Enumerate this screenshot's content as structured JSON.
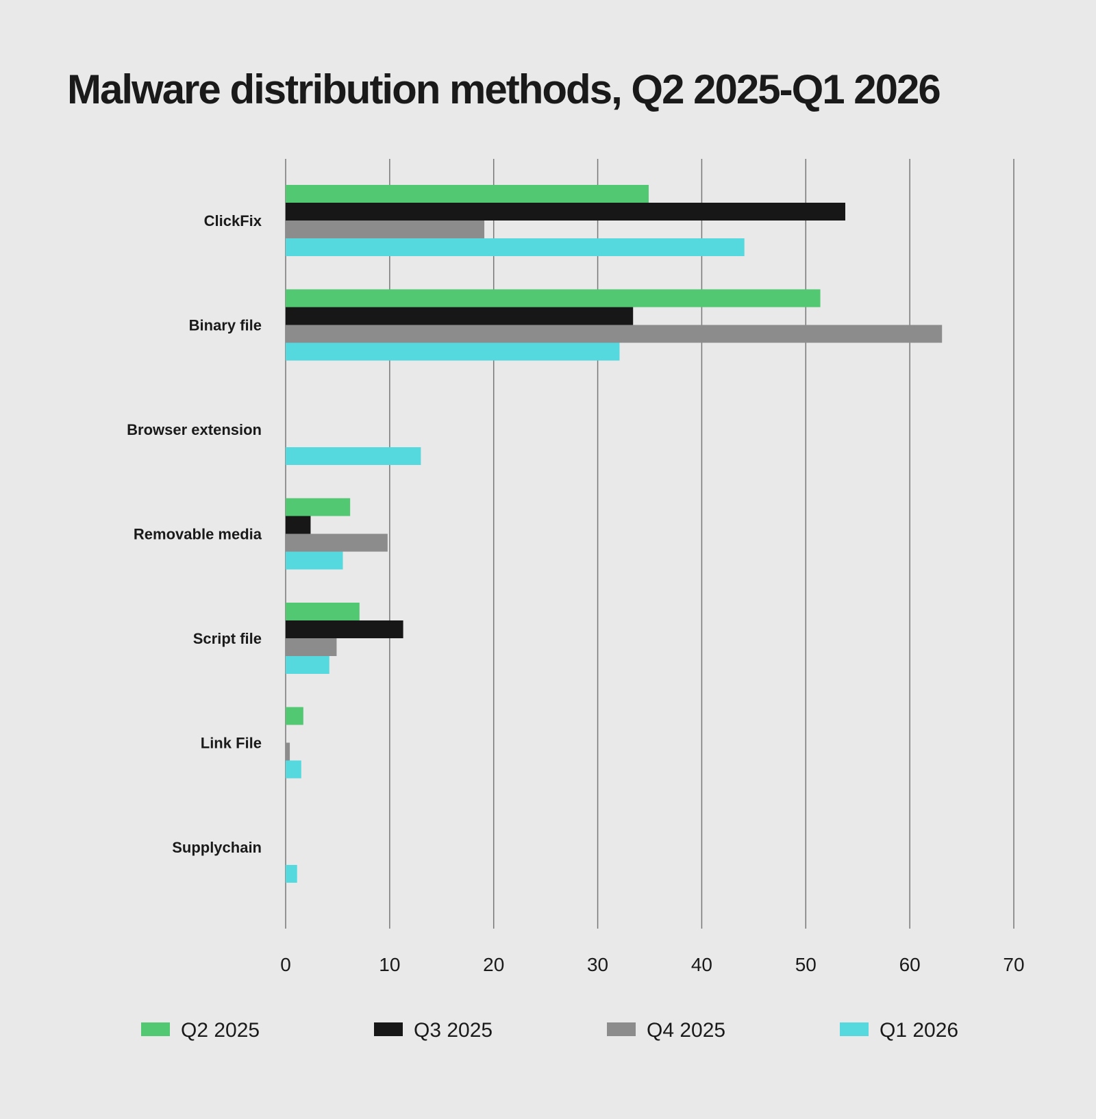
{
  "chart_data": {
    "type": "bar",
    "orientation": "horizontal",
    "title": "Malware distribution methods, Q2 2025-Q1 2026",
    "xlabel": "",
    "ylabel": "",
    "xlim": [
      0,
      70
    ],
    "x_ticks": [
      0,
      10,
      20,
      30,
      40,
      50,
      60,
      70
    ],
    "grid": true,
    "legend_position": "bottom",
    "categories": [
      "ClickFix",
      "Binary file",
      "Browser extension",
      "Removable media",
      "Script file",
      "Link File",
      "Supplychain"
    ],
    "series": [
      {
        "name": "Q2 2025",
        "color": "#51c871",
        "values": [
          34.9,
          51.4,
          0,
          6.2,
          7.1,
          1.7,
          0
        ]
      },
      {
        "name": "Q3 2025",
        "color": "#171717",
        "values": [
          53.8,
          33.4,
          0,
          2.4,
          11.3,
          0,
          0
        ]
      },
      {
        "name": "Q4 2025",
        "color": "#8c8c8c",
        "values": [
          19.1,
          63.1,
          0,
          9.8,
          4.9,
          0.4,
          0
        ]
      },
      {
        "name": "Q1 2026",
        "color": "#55d8de",
        "values": [
          44.1,
          32.1,
          13.0,
          5.5,
          4.2,
          1.5,
          1.1
        ]
      }
    ]
  }
}
